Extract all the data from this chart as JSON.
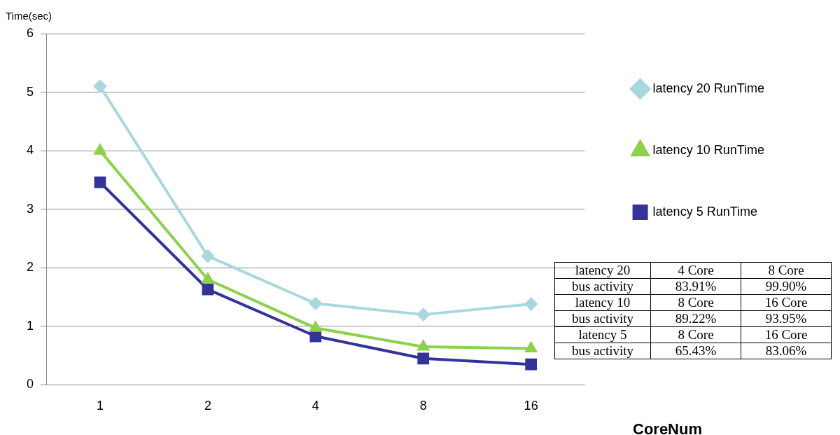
{
  "chart_data": {
    "type": "line",
    "xlabel": "CoreNum",
    "ylabel": "Time(sec)",
    "categories": [
      "1",
      "2",
      "4",
      "8",
      "16"
    ],
    "series": [
      {
        "name": "latency 20 RunTime",
        "color": "#a8d8dc",
        "marker": "diamond",
        "values": [
          5.1,
          2.2,
          1.39,
          1.2,
          1.38
        ]
      },
      {
        "name": "latency 10 RunTime",
        "color": "#8cd04c",
        "marker": "triangle",
        "values": [
          4.0,
          1.8,
          0.97,
          0.65,
          0.62
        ]
      },
      {
        "name": "latency 5 RunTime",
        "color": "#333399",
        "marker": "square",
        "values": [
          3.46,
          1.63,
          0.83,
          0.45,
          0.35
        ]
      }
    ],
    "ylim": [
      0,
      6
    ],
    "yticks": [
      0,
      1,
      2,
      3,
      4,
      5,
      6
    ],
    "grid": "y",
    "legend": "right",
    "line_style": "solid",
    "annotations": [
      "latency 20",
      "4 Core",
      "8 Core",
      "bus activity",
      "83.91%",
      "99.90%",
      "latency 10",
      "8 Core",
      "16 Core",
      "bus activity",
      "89.22%",
      "93.95%",
      "latency 5",
      "8 Core",
      "16 Core",
      "bus activity",
      "65.43%",
      "83.06%"
    ]
  }
}
